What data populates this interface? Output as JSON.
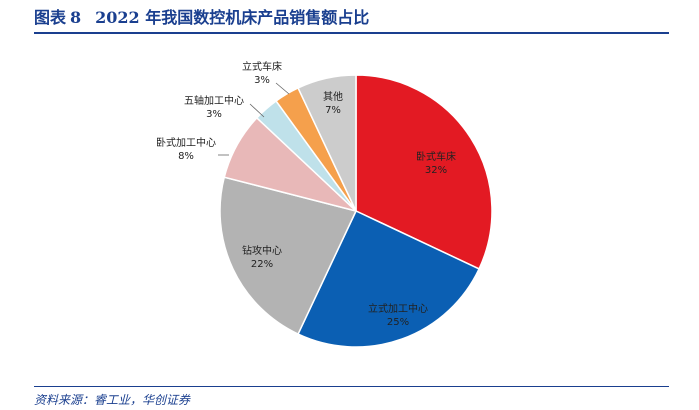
{
  "figure": {
    "label": "图表",
    "number": "8",
    "title": "2022 年我国数控机床产品销售额占比",
    "source": "资料来源：睿工业，华创证券"
  },
  "chart_data": {
    "type": "pie",
    "start_angle_deg": 0,
    "direction": "clockwise",
    "slices": [
      {
        "label": "卧式车床",
        "value": 32,
        "value_label": "32%",
        "color": "#e31a23"
      },
      {
        "label": "立式加工中心",
        "value": 25,
        "value_label": "25%",
        "color": "#0b5fb3"
      },
      {
        "label": "钻攻中心",
        "value": 22,
        "value_label": "22%",
        "color": "#b3b3b3"
      },
      {
        "label": "卧式加工中心",
        "value": 8,
        "value_label": "8%",
        "color": "#e8b8b8"
      },
      {
        "label": "五轴加工中心",
        "value": 3,
        "value_label": "3%",
        "color": "#bfe1ea"
      },
      {
        "label": "立式车床",
        "value": 3,
        "value_label": "3%",
        "color": "#f5a04c"
      },
      {
        "label": "其他",
        "value": 7,
        "value_label": "7%",
        "color": "#cccccc"
      }
    ]
  }
}
